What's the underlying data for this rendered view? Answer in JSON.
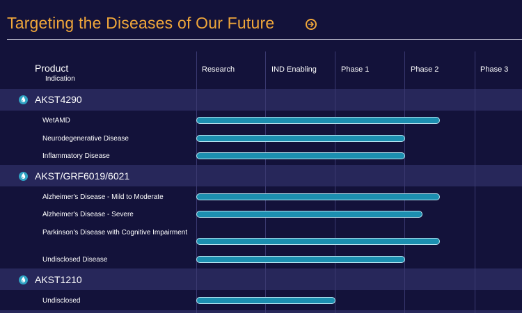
{
  "header": {
    "title": "Targeting the Diseases of Our Future"
  },
  "columns": {
    "product": "Product",
    "indication": "Indication",
    "phases": [
      "Research",
      "IND Enabling",
      "Phase 1",
      "Phase 2",
      "Phase 3"
    ]
  },
  "products": [
    {
      "name": "AKST4290",
      "indications": [
        {
          "label": "WetAMD",
          "progress_phase": 3.5
        },
        {
          "label": "Neurodegenerative Disease",
          "progress_phase": 3
        },
        {
          "label": "Inflammatory Disease",
          "progress_phase": 3
        }
      ]
    },
    {
      "name": "AKST/GRF6019/6021",
      "indications": [
        {
          "label": "Alzheimer's Disease - Mild to Moderate",
          "progress_phase": 3.5
        },
        {
          "label": "Alzheimer's Disease - Severe",
          "progress_phase": 3.25
        },
        {
          "label": "Parkinson's Disease with Cognitive Impairment",
          "progress_phase": 3.5
        },
        {
          "label": "Undisclosed Disease",
          "progress_phase": 3
        }
      ]
    },
    {
      "name": "AKST1210",
      "indications": [
        {
          "label": "Undisclosed",
          "progress_phase": 2
        }
      ]
    }
  ],
  "colors": {
    "background": "#13123a",
    "band": "#27275a",
    "accent": "#f0a73a",
    "bar": "#1c8fb0",
    "icon": "#2fa3c4"
  },
  "icons": {
    "title_link": "arrow-circle-right-icon",
    "product_marker": "droplet-icon"
  }
}
